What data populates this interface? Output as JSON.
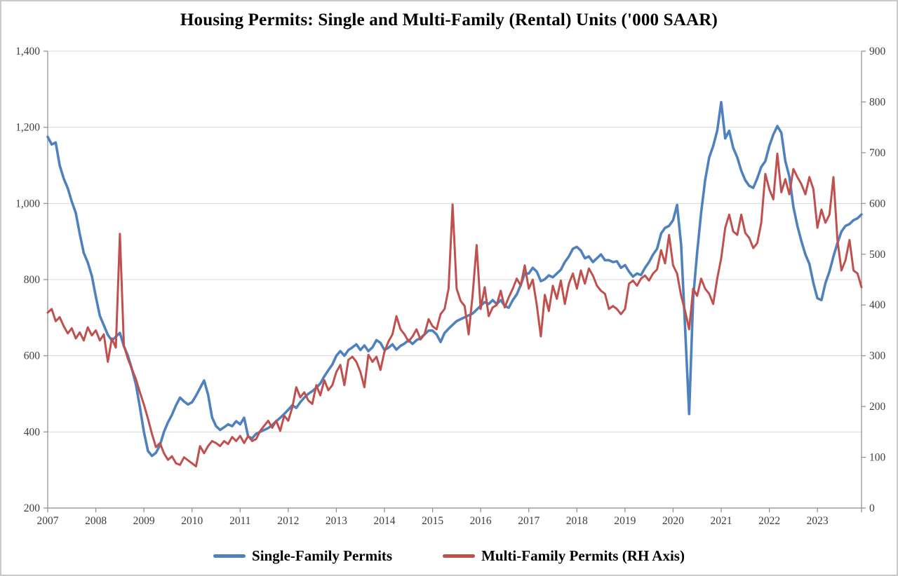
{
  "title": "Housing Permits: Single and Multi-Family (Rental) Units  ('000 SAAR)",
  "legend": {
    "items": [
      {
        "label": "Single-Family Permits",
        "color": "#4F81BD"
      },
      {
        "label": "Multi-Family Permits (RH Axis)",
        "color": "#C0504D"
      }
    ]
  },
  "chart_data": {
    "type": "line",
    "title": "Housing Permits: Single and Multi-Family (Rental) Units ('000 SAAR)",
    "frequency": "monthly",
    "x_start": "2007-01",
    "x_end": "2023-12",
    "x_tick_labels": [
      "2007",
      "2008",
      "2009",
      "2010",
      "2011",
      "2012",
      "2013",
      "2014",
      "2015",
      "2016",
      "2017",
      "2018",
      "2019",
      "2020",
      "2021",
      "2022",
      "2023"
    ],
    "left_axis": {
      "min": 200,
      "max": 1400,
      "ticks": [
        200,
        400,
        600,
        800,
        1000,
        1200,
        1400
      ],
      "tick_labels": [
        "200",
        "400",
        "600",
        "800",
        "1,000",
        "1,200",
        "1,400"
      ]
    },
    "right_axis": {
      "min": 0,
      "max": 900,
      "ticks": [
        0,
        100,
        200,
        300,
        400,
        500,
        600,
        700,
        800,
        900
      ],
      "tick_labels": [
        "0",
        "100",
        "200",
        "300",
        "400",
        "500",
        "600",
        "700",
        "800",
        "900"
      ]
    },
    "grid": "horizontal",
    "legend_position": "bottom",
    "series": [
      {
        "name": "Single-Family Permits",
        "axis": "left",
        "color": "#4F81BD",
        "values": [
          1175,
          1155,
          1160,
          1100,
          1065,
          1040,
          1005,
          975,
          920,
          870,
          845,
          810,
          755,
          705,
          680,
          655,
          640,
          650,
          660,
          625,
          600,
          565,
          525,
          465,
          400,
          350,
          337,
          345,
          365,
          400,
          425,
          445,
          470,
          490,
          480,
          472,
          478,
          495,
          515,
          535,
          498,
          438,
          415,
          405,
          412,
          420,
          415,
          428,
          420,
          437,
          388,
          383,
          395,
          400,
          405,
          410,
          418,
          428,
          437,
          447,
          458,
          470,
          463,
          478,
          490,
          500,
          507,
          516,
          527,
          546,
          562,
          577,
          600,
          612,
          600,
          615,
          622,
          630,
          615,
          627,
          612,
          622,
          641,
          634,
          615,
          621,
          630,
          616,
          626,
          632,
          641,
          631,
          641,
          646,
          656,
          666,
          666,
          656,
          636,
          660,
          671,
          681,
          691,
          696,
          701,
          706,
          711,
          721,
          731,
          741,
          736,
          746,
          736,
          746,
          731,
          726,
          746,
          761,
          786,
          816,
          816,
          831,
          821,
          796,
          801,
          811,
          806,
          816,
          826,
          846,
          861,
          881,
          886,
          876,
          856,
          861,
          846,
          856,
          866,
          851,
          851,
          846,
          848,
          831,
          838,
          821,
          808,
          816,
          812,
          831,
          846,
          866,
          881,
          921,
          936,
          941,
          956,
          996,
          891,
          671,
          447,
          751,
          871,
          976,
          1061,
          1121,
          1151,
          1191,
          1266,
          1171,
          1191,
          1146,
          1121,
          1086,
          1061,
          1046,
          1041,
          1066,
          1096,
          1111,
          1151,
          1181,
          1203,
          1186,
          1111,
          1071,
          991,
          941,
          901,
          866,
          841,
          791,
          751,
          746,
          791,
          821,
          861,
          896,
          926,
          941,
          946,
          956,
          961,
          971
        ]
      },
      {
        "name": "Multi-Family Permits (RH Axis)",
        "axis": "right",
        "color": "#C0504D",
        "values": [
          385,
          392,
          368,
          376,
          358,
          344,
          354,
          334,
          346,
          330,
          356,
          340,
          350,
          330,
          342,
          288,
          334,
          316,
          540,
          320,
          294,
          274,
          254,
          228,
          204,
          176,
          146,
          120,
          128,
          108,
          95,
          102,
          88,
          85,
          100,
          94,
          88,
          82,
          122,
          108,
          122,
          132,
          128,
          122,
          132,
          126,
          140,
          132,
          142,
          128,
          142,
          132,
          136,
          152,
          162,
          172,
          158,
          172,
          152,
          182,
          172,
          198,
          238,
          218,
          228,
          212,
          205,
          242,
          222,
          252,
          232,
          242,
          268,
          282,
          242,
          292,
          298,
          288,
          268,
          238,
          302,
          288,
          298,
          272,
          308,
          328,
          342,
          378,
          352,
          342,
          328,
          338,
          352,
          332,
          342,
          372,
          358,
          352,
          382,
          392,
          432,
          598,
          432,
          408,
          398,
          342,
          420,
          518,
          392,
          435,
          378,
          395,
          400,
          428,
          395,
          415,
          432,
          452,
          438,
          478,
          432,
          450,
          400,
          338,
          420,
          388,
          438,
          412,
          448,
          402,
          442,
          462,
          432,
          468,
          442,
          472,
          458,
          438,
          428,
          422,
          392,
          398,
          392,
          382,
          392,
          442,
          448,
          438,
          452,
          458,
          448,
          462,
          470,
          508,
          482,
          538,
          478,
          462,
          418,
          388,
          352,
          432,
          418,
          452,
          432,
          422,
          402,
          452,
          492,
          552,
          578,
          545,
          538,
          578,
          542,
          532,
          512,
          522,
          562,
          658,
          628,
          608,
          698,
          622,
          648,
          618,
          668,
          652,
          638,
          618,
          652,
          628,
          552,
          588,
          562,
          578,
          652,
          528,
          468,
          488,
          528,
          468,
          462,
          435
        ]
      }
    ]
  }
}
